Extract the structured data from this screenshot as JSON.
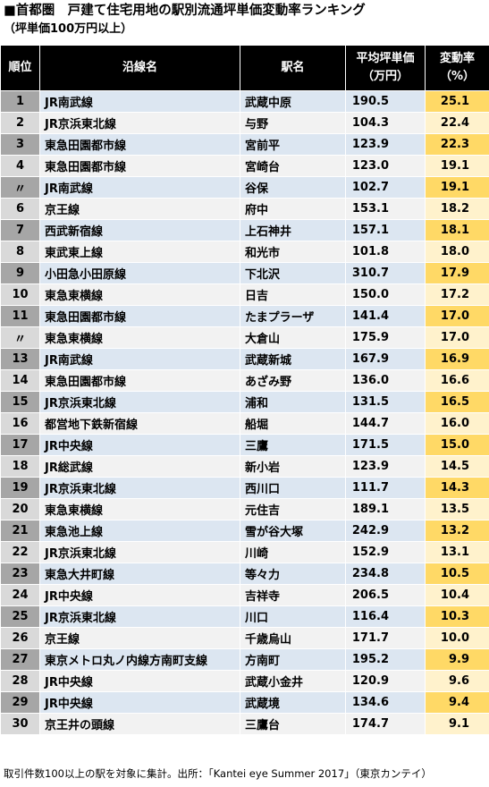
{
  "title": "■首都圏　戸建て住宅用地の駅別流通坪単価変動率ランキング",
  "subtitle": "（坪単価100万円以上）",
  "headers": {
    "rank": "順位",
    "line": "沿線名",
    "station": "駅名",
    "price_1": "平均坪単価",
    "price_2": "（万円）",
    "rate_1": "変動率",
    "rate_2": "（%）"
  },
  "rows": [
    {
      "rank": "1",
      "line": "JR南武線",
      "station": "武蔵中原",
      "price": "190.5",
      "rate": "25.1"
    },
    {
      "rank": "2",
      "line": "JR京浜東北線",
      "station": "与野",
      "price": "104.3",
      "rate": "22.4"
    },
    {
      "rank": "3",
      "line": "東急田園都市線",
      "station": "宮前平",
      "price": "123.9",
      "rate": "22.3"
    },
    {
      "rank": "4",
      "line": "東急田園都市線",
      "station": "宮崎台",
      "price": "123.0",
      "rate": "19.1"
    },
    {
      "rank": "〃",
      "line": "JR南武線",
      "station": "谷保",
      "price": "102.7",
      "rate": "19.1"
    },
    {
      "rank": "6",
      "line": "京王線",
      "station": "府中",
      "price": "153.1",
      "rate": "18.2"
    },
    {
      "rank": "7",
      "line": "西武新宿線",
      "station": "上石神井",
      "price": "157.1",
      "rate": "18.1"
    },
    {
      "rank": "8",
      "line": "東武東上線",
      "station": "和光市",
      "price": "101.8",
      "rate": "18.0"
    },
    {
      "rank": "9",
      "line": "小田急小田原線",
      "station": "下北沢",
      "price": "310.7",
      "rate": "17.9"
    },
    {
      "rank": "10",
      "line": "東急東横線",
      "station": "日吉",
      "price": "150.0",
      "rate": "17.2"
    },
    {
      "rank": "11",
      "line": "東急田園都市線",
      "station": "たまプラーザ",
      "price": "141.4",
      "rate": "17.0"
    },
    {
      "rank": "〃",
      "line": "東急東横線",
      "station": "大倉山",
      "price": "175.9",
      "rate": "17.0"
    },
    {
      "rank": "13",
      "line": "JR南武線",
      "station": "武蔵新城",
      "price": "167.9",
      "rate": "16.9"
    },
    {
      "rank": "14",
      "line": "東急田園都市線",
      "station": "あざみ野",
      "price": "136.0",
      "rate": "16.6"
    },
    {
      "rank": "15",
      "line": "JR京浜東北線",
      "station": "浦和",
      "price": "131.5",
      "rate": "16.5"
    },
    {
      "rank": "16",
      "line": "都営地下鉄新宿線",
      "station": "船堀",
      "price": "144.7",
      "rate": "16.0"
    },
    {
      "rank": "17",
      "line": "JR中央線",
      "station": "三鷹",
      "price": "171.5",
      "rate": "15.0"
    },
    {
      "rank": "18",
      "line": "JR総武線",
      "station": "新小岩",
      "price": "123.9",
      "rate": "14.5"
    },
    {
      "rank": "19",
      "line": "JR京浜東北線",
      "station": "西川口",
      "price": "111.7",
      "rate": "14.3"
    },
    {
      "rank": "20",
      "line": "東急東横線",
      "station": "元住吉",
      "price": "189.1",
      "rate": "13.5"
    },
    {
      "rank": "21",
      "line": "東急池上線",
      "station": "雪が谷大塚",
      "price": "242.9",
      "rate": "13.2"
    },
    {
      "rank": "22",
      "line": "JR京浜東北線",
      "station": "川崎",
      "price": "152.9",
      "rate": "13.1"
    },
    {
      "rank": "23",
      "line": "東急大井町線",
      "station": "等々力",
      "price": "234.8",
      "rate": "10.5"
    },
    {
      "rank": "24",
      "line": "JR中央線",
      "station": "吉祥寺",
      "price": "206.5",
      "rate": "10.4"
    },
    {
      "rank": "25",
      "line": "JR京浜東北線",
      "station": "川口",
      "price": "116.4",
      "rate": "10.3"
    },
    {
      "rank": "26",
      "line": "京王線",
      "station": "千歳烏山",
      "price": "171.7",
      "rate": "10.0"
    },
    {
      "rank": "27",
      "line": "東京メトロ丸ノ内線方南町支線",
      "station": "方南町",
      "price": "195.2",
      "rate": "9.9"
    },
    {
      "rank": "28",
      "line": "JR中央線",
      "station": "武蔵小金井",
      "price": "120.9",
      "rate": "9.6"
    },
    {
      "rank": "29",
      "line": "JR中央線",
      "station": "武蔵境",
      "price": "134.6",
      "rate": "9.4"
    },
    {
      "rank": "30",
      "line": "京王井の頭線",
      "station": "三鷹台",
      "price": "174.7",
      "rate": "9.1"
    }
  ],
  "footer": "取引件数100以上の駅を対象に集計。出所：「Kantei eye Summer 2017」（東京カンテイ）"
}
